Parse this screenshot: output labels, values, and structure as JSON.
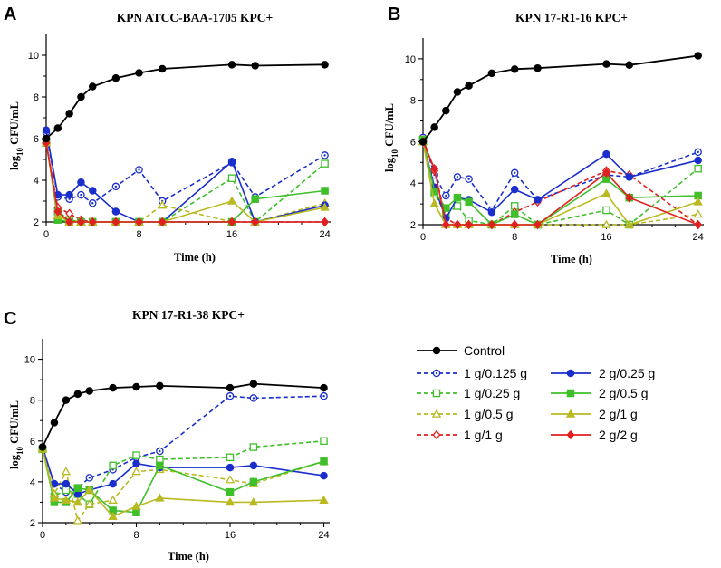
{
  "legend": {
    "entries": [
      {
        "key": "control",
        "label": "Control",
        "color": "#000000",
        "dash": false,
        "marker": "dot"
      },
      {
        "key": "s1",
        "label": "1 g/0.125 g",
        "color": "#1a2ecc",
        "dash": true,
        "marker": "ocircle"
      },
      {
        "key": "s2",
        "label": "1 g/0.25 g",
        "color": "#3fbf2a",
        "dash": true,
        "marker": "osquare"
      },
      {
        "key": "s3",
        "label": "1 g/0.5 g",
        "color": "#b9b922",
        "dash": true,
        "marker": "otri"
      },
      {
        "key": "s4",
        "label": "1 g/1 g",
        "color": "#e02020",
        "dash": true,
        "marker": "odiamond"
      },
      {
        "key": "s5",
        "label": "2 g/0.25 g",
        "color": "#1a2ecc",
        "dash": false,
        "marker": "circle"
      },
      {
        "key": "s6",
        "label": "2 g/0.5 g",
        "color": "#3fbf2a",
        "dash": false,
        "marker": "square"
      },
      {
        "key": "s7",
        "label": "2 g/1 g",
        "color": "#b9b922",
        "dash": false,
        "marker": "tri"
      },
      {
        "key": "s8",
        "label": "2 g/2 g",
        "color": "#e02020",
        "dash": false,
        "marker": "diamond"
      }
    ]
  },
  "chart_data": [
    {
      "type": "line",
      "panel": "A",
      "title": "KPN   ATCC-BAA-1705   KPC+",
      "xlabel": "Time (h)",
      "ylabel_base": "log",
      "ylabel_sub": "10",
      "ylabel_rest": " CFU/mL",
      "xticks": [
        0,
        8,
        16,
        24
      ],
      "yticks": [
        2,
        4,
        6,
        8,
        10
      ],
      "xlim": [
        0,
        24.5
      ],
      "ylim": [
        2,
        11
      ],
      "series": [
        {
          "key": "control",
          "x": [
            0,
            1,
            2,
            3,
            4,
            6,
            8,
            10,
            16,
            18,
            24
          ],
          "y": [
            6.0,
            6.5,
            7.2,
            8.0,
            8.5,
            8.9,
            9.15,
            9.35,
            9.55,
            9.5,
            9.55
          ]
        },
        {
          "key": "s1",
          "x": [
            0,
            1,
            2,
            3,
            4,
            6,
            8,
            10,
            16,
            18,
            24
          ],
          "y": [
            6.3,
            3.2,
            3.1,
            3.3,
            2.9,
            3.7,
            4.5,
            3.0,
            4.85,
            3.2,
            5.2
          ]
        },
        {
          "key": "s2",
          "x": [
            0,
            1,
            2,
            3,
            4,
            6,
            8,
            10,
            16,
            18,
            24
          ],
          "y": [
            5.8,
            2.5,
            2.1,
            2.0,
            2.0,
            2.0,
            2.0,
            2.0,
            4.1,
            2.0,
            4.8
          ]
        },
        {
          "key": "s3",
          "x": [
            0,
            1,
            2,
            3,
            4,
            6,
            8,
            10,
            16,
            18,
            24
          ],
          "y": [
            5.9,
            2.3,
            2.1,
            2.0,
            2.0,
            2.0,
            2.0,
            2.8,
            2.0,
            2.0,
            2.9
          ]
        },
        {
          "key": "s4",
          "x": [
            0,
            1,
            2,
            3,
            4,
            6,
            8,
            10,
            16,
            18,
            24
          ],
          "y": [
            5.8,
            2.7,
            2.4,
            2.1,
            2.0,
            2.0,
            2.0,
            2.0,
            2.0,
            2.0,
            2.0
          ]
        },
        {
          "key": "s5",
          "x": [
            0,
            1,
            2,
            3,
            4,
            6,
            8,
            10,
            16,
            18,
            24
          ],
          "y": [
            6.4,
            3.3,
            3.3,
            3.9,
            3.5,
            2.5,
            2.0,
            2.0,
            4.9,
            2.0,
            2.8
          ]
        },
        {
          "key": "s6",
          "x": [
            0,
            1,
            2,
            3,
            4,
            6,
            8,
            10,
            16,
            18,
            24
          ],
          "y": [
            5.9,
            2.1,
            2.0,
            2.0,
            2.0,
            2.0,
            2.0,
            2.0,
            2.0,
            3.1,
            3.5
          ]
        },
        {
          "key": "s7",
          "x": [
            0,
            1,
            2,
            3,
            4,
            6,
            8,
            10,
            16,
            18,
            24
          ],
          "y": [
            5.8,
            2.3,
            2.0,
            2.0,
            2.0,
            2.0,
            2.0,
            2.0,
            3.0,
            2.0,
            2.7
          ]
        },
        {
          "key": "s8",
          "x": [
            0,
            1,
            2,
            3,
            4,
            6,
            8,
            10,
            16,
            18,
            24
          ],
          "y": [
            5.8,
            2.5,
            2.0,
            2.0,
            2.0,
            2.0,
            2.0,
            2.0,
            2.0,
            2.0,
            2.0
          ]
        }
      ]
    },
    {
      "type": "line",
      "panel": "B",
      "title": "KPN   17-R1-16   KPC+",
      "xlabel": "Time (h)",
      "ylabel_base": "log",
      "ylabel_sub": "10",
      "ylabel_rest": " CFU/mL",
      "xticks": [
        0,
        8,
        16,
        24
      ],
      "yticks": [
        2,
        4,
        6,
        8,
        10
      ],
      "xlim": [
        0,
        24.5
      ],
      "ylim": [
        2,
        11
      ],
      "series": [
        {
          "key": "control",
          "x": [
            0,
            1,
            2,
            3,
            4,
            6,
            8,
            10,
            16,
            18,
            24
          ],
          "y": [
            6.0,
            6.7,
            7.5,
            8.4,
            8.7,
            9.3,
            9.5,
            9.55,
            9.75,
            9.7,
            10.15
          ]
        },
        {
          "key": "s1",
          "x": [
            0,
            1,
            2,
            3,
            4,
            6,
            8,
            10,
            16,
            18,
            24
          ],
          "y": [
            6.2,
            4.4,
            3.4,
            4.3,
            4.2,
            2.7,
            4.5,
            3.2,
            4.4,
            4.3,
            5.5
          ]
        },
        {
          "key": "s2",
          "x": [
            0,
            1,
            2,
            3,
            4,
            6,
            8,
            10,
            16,
            18,
            24
          ],
          "y": [
            6.1,
            3.5,
            2.5,
            2.9,
            2.2,
            2.0,
            2.9,
            2.0,
            2.7,
            2.0,
            4.7
          ]
        },
        {
          "key": "s3",
          "x": [
            0,
            1,
            2,
            3,
            4,
            6,
            8,
            10,
            16,
            18,
            24
          ],
          "y": [
            6.0,
            3.0,
            2.0,
            2.0,
            2.0,
            2.0,
            2.0,
            2.0,
            2.0,
            2.0,
            2.5
          ]
        },
        {
          "key": "s4",
          "x": [
            0,
            1,
            2,
            3,
            4,
            6,
            8,
            10,
            16,
            18,
            24
          ],
          "y": [
            6.1,
            4.6,
            2.3,
            2.0,
            2.0,
            2.0,
            2.6,
            3.1,
            4.6,
            4.4,
            2.0
          ]
        },
        {
          "key": "s5",
          "x": [
            0,
            1,
            2,
            3,
            4,
            6,
            8,
            10,
            16,
            18,
            24
          ],
          "y": [
            6.0,
            3.8,
            2.3,
            3.3,
            3.2,
            2.6,
            3.7,
            3.2,
            5.4,
            4.3,
            5.1
          ]
        },
        {
          "key": "s6",
          "x": [
            0,
            1,
            2,
            3,
            4,
            6,
            8,
            10,
            16,
            18,
            24
          ],
          "y": [
            6.1,
            3.6,
            2.8,
            3.3,
            3.1,
            2.0,
            2.5,
            2.0,
            4.2,
            3.3,
            3.4
          ]
        },
        {
          "key": "s7",
          "x": [
            0,
            1,
            2,
            3,
            4,
            6,
            8,
            10,
            16,
            18,
            24
          ],
          "y": [
            6.0,
            3.0,
            2.0,
            2.0,
            2.0,
            2.0,
            2.0,
            2.0,
            3.5,
            2.0,
            3.1
          ]
        },
        {
          "key": "s8",
          "x": [
            0,
            1,
            2,
            3,
            4,
            6,
            8,
            10,
            16,
            18,
            24
          ],
          "y": [
            6.0,
            4.7,
            2.0,
            2.0,
            2.0,
            2.0,
            2.0,
            2.0,
            4.5,
            3.3,
            2.0
          ]
        }
      ]
    },
    {
      "type": "line",
      "panel": "C",
      "title": "KPN   17-R1-38   KPC+",
      "xlabel": "Time (h)",
      "ylabel_base": "log",
      "ylabel_sub": "10",
      "ylabel_rest": " CFU/mL",
      "xticks": [
        0,
        8,
        16,
        24
      ],
      "yticks": [
        2,
        4,
        6,
        8,
        10
      ],
      "xlim": [
        0,
        24.5
      ],
      "ylim": [
        2,
        11
      ],
      "series": [
        {
          "key": "control",
          "x": [
            0,
            1,
            2,
            3,
            4,
            6,
            8,
            10,
            16,
            18,
            24
          ],
          "y": [
            5.7,
            6.9,
            8.0,
            8.3,
            8.45,
            8.6,
            8.65,
            8.7,
            8.6,
            8.8,
            8.6
          ]
        },
        {
          "key": "s1",
          "x": [
            0,
            1,
            2,
            3,
            4,
            6,
            8,
            10,
            16,
            18,
            24
          ],
          "y": [
            5.6,
            3.9,
            3.5,
            3.7,
            4.2,
            4.6,
            5.2,
            5.5,
            8.2,
            8.1,
            8.2
          ]
        },
        {
          "key": "s2",
          "x": [
            0,
            1,
            2,
            3,
            4,
            6,
            8,
            10,
            16,
            18,
            24
          ],
          "y": [
            5.6,
            3.3,
            3.6,
            3.4,
            2.9,
            4.8,
            5.3,
            5.1,
            5.2,
            5.7,
            6.0
          ]
        },
        {
          "key": "s3",
          "x": [
            0,
            1,
            2,
            3,
            4,
            6,
            8,
            10,
            16,
            18,
            24
          ],
          "y": [
            5.7,
            3.4,
            4.5,
            2.1,
            2.9,
            3.1,
            4.5,
            4.6,
            4.1,
            3.9,
            5.0
          ]
        },
        {
          "key": "s5",
          "x": [
            0,
            1,
            2,
            3,
            4,
            6,
            8,
            10,
            16,
            18,
            24
          ],
          "y": [
            5.7,
            3.9,
            3.9,
            3.4,
            3.6,
            3.9,
            4.9,
            4.7,
            4.7,
            4.8,
            4.3
          ]
        },
        {
          "key": "s6",
          "x": [
            0,
            1,
            2,
            3,
            4,
            6,
            8,
            10,
            16,
            18,
            24
          ],
          "y": [
            5.6,
            3.0,
            3.0,
            3.7,
            3.6,
            2.6,
            2.5,
            4.8,
            3.5,
            4.0,
            5.0
          ]
        },
        {
          "key": "s7",
          "x": [
            0,
            1,
            2,
            3,
            4,
            6,
            8,
            10,
            16,
            18,
            24
          ],
          "y": [
            5.6,
            3.2,
            3.1,
            3.0,
            3.6,
            2.3,
            2.8,
            3.2,
            3.0,
            3.0,
            3.1
          ]
        }
      ]
    }
  ]
}
